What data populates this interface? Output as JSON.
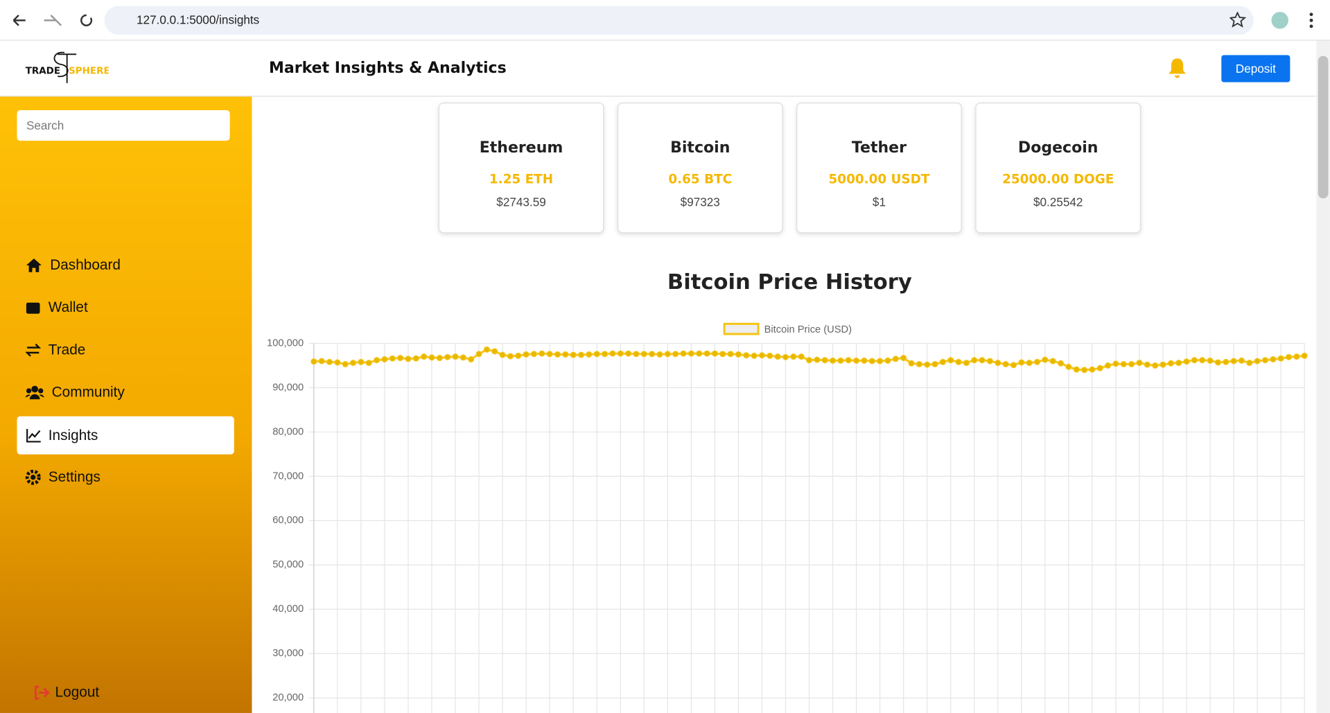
{
  "browser": {
    "url": "127.0.0.1:5000/insights"
  },
  "header": {
    "logo_left": "TRADE",
    "logo_right": "SPHERE",
    "title": "Market Insights & Analytics",
    "button": "Deposit"
  },
  "sidebar": {
    "search": "Search",
    "nav": [
      "Dashboard",
      "Wallet",
      "Trade",
      "Community",
      "Insights",
      "Settings"
    ],
    "logout": "Logout"
  },
  "cards": [
    {
      "name": "Ethereum",
      "amount": "1.25 ETH",
      "price": "$2743.59"
    },
    {
      "name": "Bitcoin",
      "amount": "0.65 BTC",
      "price": "$97323"
    },
    {
      "name": "Tether",
      "amount": "5000.00 USDT",
      "price": "$1"
    },
    {
      "name": "Dogecoin",
      "amount": "25000.00 DOGE",
      "price": "$0.25542"
    }
  ],
  "chart_data": {
    "type": "line",
    "title": "Bitcoin Price History",
    "legend": "top",
    "grid": true,
    "categories": [
      null,
      null,
      null,
      null,
      null,
      null,
      null,
      null,
      null,
      null,
      null,
      null,
      null,
      null,
      null,
      null,
      null,
      null,
      null,
      null,
      null,
      null,
      null,
      null,
      null,
      null,
      null,
      null,
      null,
      null,
      null,
      null,
      null,
      null,
      null,
      null,
      null,
      null,
      null,
      null,
      null,
      null,
      null,
      null,
      null,
      null,
      null,
      null,
      null,
      null,
      null,
      null,
      null,
      null,
      null,
      null,
      null,
      null,
      null,
      null,
      null,
      null,
      null,
      null,
      null,
      null,
      null,
      null,
      null,
      null,
      null,
      null,
      null,
      null,
      null,
      null,
      null,
      null,
      null,
      null,
      null,
      null,
      null,
      null,
      null,
      null,
      null,
      null,
      null,
      null,
      null,
      null,
      null,
      null,
      null,
      null,
      null,
      null,
      null,
      null,
      null,
      null,
      null,
      null,
      null,
      null,
      null,
      null,
      null,
      null,
      null,
      null,
      null,
      null,
      null,
      null,
      null,
      null,
      null,
      null,
      null,
      null,
      null,
      null,
      null,
      null,
      null
    ],
    "series": [
      {
        "name": "Bitcoin Price (USD)",
        "color": "#f5c518",
        "values": [
          95900,
          96000,
          95800,
          95700,
          95300,
          95600,
          95800,
          95600,
          96200,
          96400,
          96600,
          96700,
          96500,
          96600,
          97000,
          96800,
          96700,
          96900,
          97000,
          96800,
          96400,
          97600,
          98600,
          98200,
          97400,
          97100,
          97200,
          97500,
          97600,
          97700,
          97600,
          97500,
          97500,
          97400,
          97400,
          97500,
          97600,
          97600,
          97700,
          97700,
          97700,
          97600,
          97600,
          97600,
          97500,
          97600,
          97600,
          97700,
          97700,
          97700,
          97700,
          97700,
          97600,
          97600,
          97500,
          97300,
          97200,
          97300,
          97200,
          97000,
          96900,
          97000,
          97000,
          96200,
          96300,
          96200,
          96100,
          96100,
          96200,
          96100,
          96100,
          96000,
          96000,
          96100,
          96500,
          96700,
          95500,
          95300,
          95200,
          95300,
          95800,
          96200,
          95800,
          95600,
          96200,
          96200,
          96000,
          95600,
          95300,
          95100,
          95700,
          95600,
          95800,
          96300,
          96000,
          95500,
          94700,
          94100,
          94000,
          94100,
          94400,
          95000,
          95400,
          95300,
          95300,
          95600,
          95200,
          95000,
          95200,
          95500,
          95600,
          95900,
          96200,
          96200,
          96100,
          95700,
          95800,
          96000,
          96100,
          95600,
          96000,
          96200,
          96400,
          96600,
          96900,
          97000,
          97200
        ]
      }
    ],
    "ylim": [
      16600,
      100000
    ],
    "yticks": [
      {
        "value": 20000,
        "label": "20,000"
      },
      {
        "value": 30000,
        "label": "30,000"
      },
      {
        "value": 40000,
        "label": "40,000"
      },
      {
        "value": 50000,
        "label": "50,000"
      },
      {
        "value": 60000,
        "label": "60,000"
      },
      {
        "value": 70000,
        "label": "70,000"
      },
      {
        "value": 80000,
        "label": "80,000"
      },
      {
        "value": 90000,
        "label": "90,000"
      },
      {
        "value": 100000,
        "label": "100,000"
      }
    ]
  }
}
